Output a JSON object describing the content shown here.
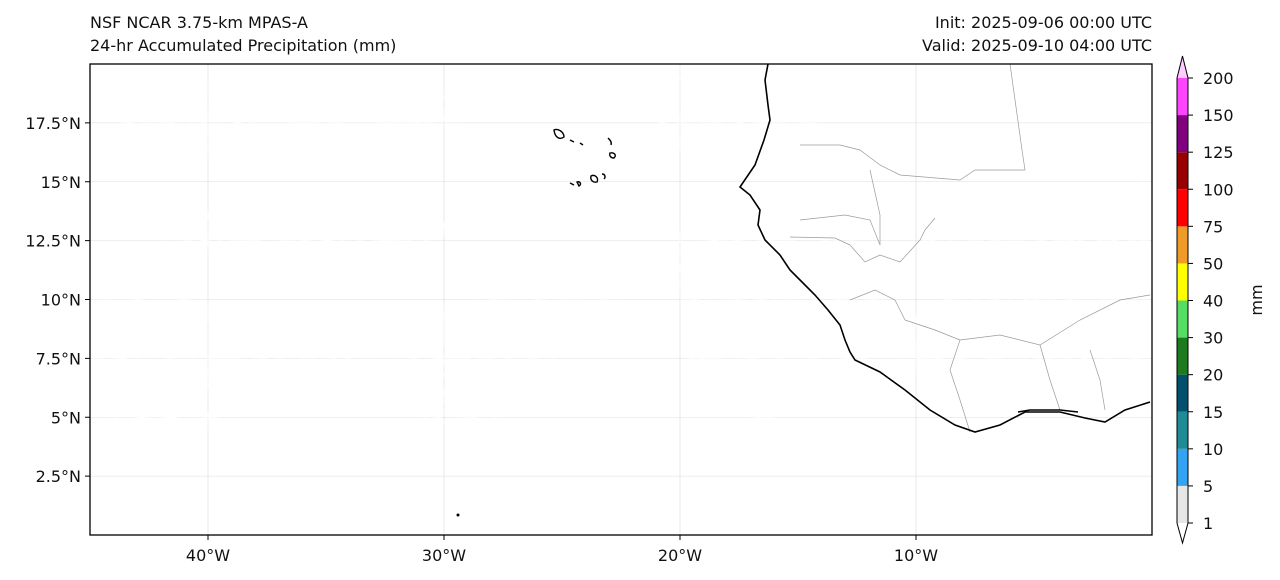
{
  "header": {
    "model": "NSF NCAR 3.75-km MPAS-A",
    "field": "24-hr Accumulated Precipitation (mm)",
    "init": "Init: 2025-09-06 00:00 UTC",
    "valid": "Valid: 2025-09-10 04:00 UTC"
  },
  "map": {
    "lon_range": [
      -45,
      0
    ],
    "lat_range": [
      0,
      20
    ],
    "lat_ticks": [
      {
        "value": 2.5,
        "label": "2.5°N"
      },
      {
        "value": 5,
        "label": "5°N"
      },
      {
        "value": 7.5,
        "label": "7.5°N"
      },
      {
        "value": 10,
        "label": "10°N"
      },
      {
        "value": 12.5,
        "label": "12.5°N"
      },
      {
        "value": 15,
        "label": "15°N"
      },
      {
        "value": 17.5,
        "label": "17.5°N"
      }
    ],
    "lon_ticks": [
      {
        "value": -40,
        "label": "40°W"
      },
      {
        "value": -30,
        "label": "30°W"
      },
      {
        "value": -20,
        "label": "20°W"
      },
      {
        "value": -10,
        "label": "10°W"
      }
    ],
    "grid": true
  },
  "colorbar": {
    "unit_label": "mm",
    "levels": [
      "1",
      "5",
      "10",
      "15",
      "20",
      "30",
      "40",
      "50",
      "75",
      "100",
      "125",
      "150",
      "200"
    ],
    "colors": [
      "#e6e6e6",
      "#33a3f2",
      "#1e8b96",
      "#00506e",
      "#1e7a1e",
      "#55dd66",
      "#ffff00",
      "#f09a28",
      "#ff0000",
      "#990000",
      "#800080",
      "#ff44ff"
    ],
    "extend_low_color": "#ffffff",
    "extend_high_color": "#ffccff"
  }
}
